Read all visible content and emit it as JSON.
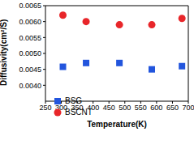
{
  "chart_data": {
    "type": "scatter",
    "x_label": "Temperature(K)",
    "y_label": "Diffusivity(cm²/S)",
    "xlim": [
      250,
      700
    ],
    "xticks": [
      250,
      300,
      350,
      400,
      450,
      500,
      550,
      600,
      650,
      700
    ],
    "ylim": [
      0.0035,
      0.0065
    ],
    "yticks": [
      {
        "value": 0.004,
        "label": "0.0040"
      },
      0.0045,
      {
        "value": 0.005,
        "label": "0.0050"
      },
      0.0055,
      {
        "value": 0.006,
        "label": "0.0060"
      },
      0.0065
    ],
    "grid": false,
    "legend": "lower left",
    "series": [
      {
        "name": "BSG",
        "color": "#2255dd",
        "marker": "square",
        "x": [
          305,
          378,
          483,
          585,
          680
        ],
        "values": [
          0.00458,
          0.0047,
          0.0047,
          0.0045,
          0.0046
        ]
      },
      {
        "name": "BSCNT",
        "color": "#e8262a",
        "marker": "circle",
        "x": [
          305,
          378,
          483,
          585,
          680
        ],
        "values": [
          0.0062,
          0.006,
          0.0059,
          0.0059,
          0.0061
        ]
      }
    ]
  }
}
